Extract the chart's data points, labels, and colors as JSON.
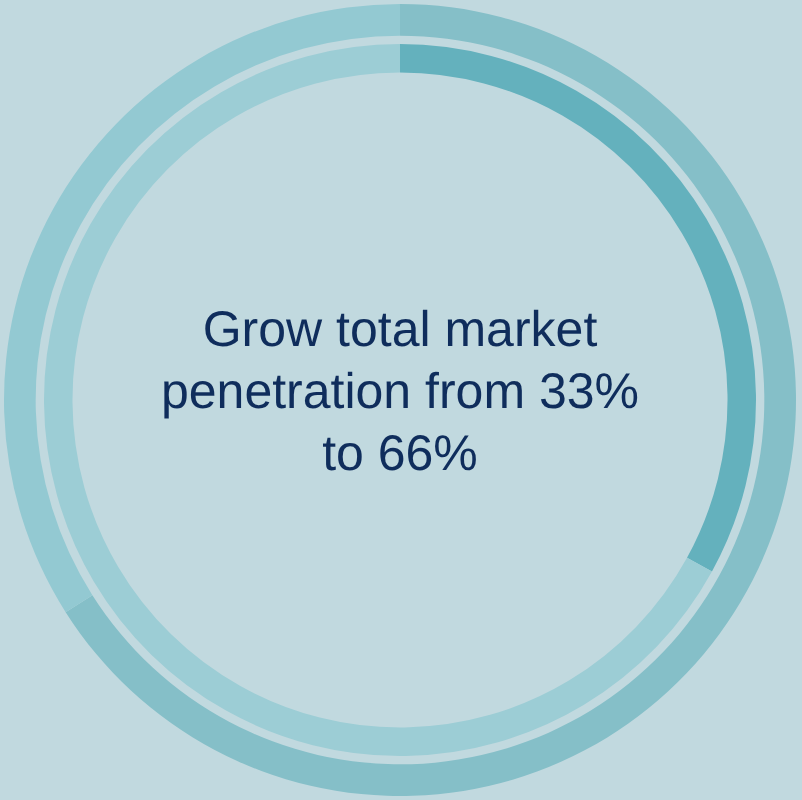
{
  "chart_data": [
    {
      "type": "donut",
      "title": "Grow total market penetration from 33% to 66%",
      "categories": [
        null,
        null
      ],
      "values": [
        66,
        34
      ],
      "colors": [
        "#85bfc8",
        "#93c9d2"
      ]
    },
    {
      "type": "donut",
      "categories": [
        null,
        null
      ],
      "values": [
        33,
        67
      ],
      "colors": [
        "#64b1bd",
        "#9ccdd5"
      ]
    }
  ]
}
